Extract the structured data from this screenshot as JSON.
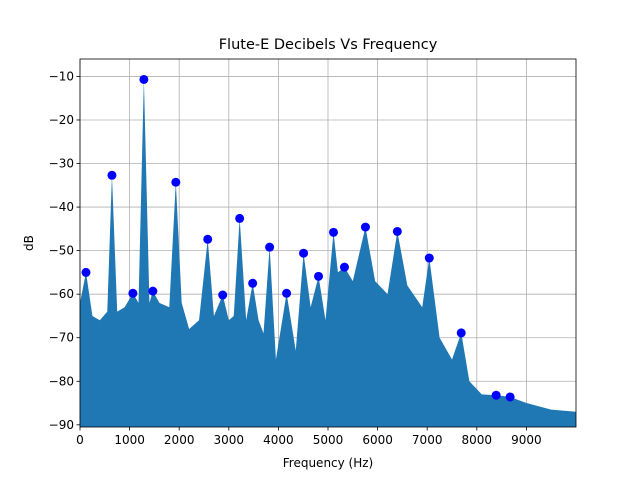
{
  "chart_data": {
    "type": "area",
    "title": "Flute-E Decibels Vs Frequency",
    "x_label": "Frequency (Hz)",
    "y_label": "dB",
    "x": [
      0,
      121,
      250,
      400,
      550,
      644,
      750,
      900,
      1066,
      1180,
      1288,
      1400,
      1469,
      1600,
      1800,
      1932,
      2050,
      2200,
      2400,
      2575,
      2700,
      2877,
      3000,
      3100,
      3219,
      3350,
      3481,
      3600,
      3700,
      3823,
      3950,
      4165,
      4350,
      4507,
      4650,
      4809,
      4950,
      5111,
      5200,
      5332,
      5500,
      5755,
      5950,
      6200,
      6398,
      6600,
      6900,
      7042,
      7250,
      7500,
      7686,
      7850,
      8100,
      8390,
      8672,
      9000,
      9500,
      10000
    ],
    "series": [
      {
        "color": "#1f77b4",
        "values": [
          -62,
          -55,
          -65,
          -66,
          -64,
          -32.7,
          -64,
          -63,
          -59.8,
          -62,
          -10.7,
          -62,
          -59.3,
          -62,
          -63,
          -34.3,
          -62,
          -68,
          -66,
          -47.4,
          -65,
          -60.2,
          -66,
          -65,
          -42.6,
          -66,
          -57.5,
          -66,
          -69,
          -49.2,
          -75,
          -59.8,
          -73,
          -50.6,
          -63,
          -55.9,
          -66,
          -45.8,
          -55,
          -53.8,
          -57,
          -44.6,
          -57,
          -60,
          -45.6,
          -58,
          -63,
          -51.7,
          -70,
          -75,
          -68.9,
          -80,
          -83,
          -83.2,
          -83.6,
          -85,
          -86.5,
          -87
        ]
      }
    ],
    "peaks": {
      "color": "#0000ff",
      "x": [
        121,
        644,
        1066,
        1288,
        1469,
        1932,
        2575,
        2877,
        3219,
        3481,
        3823,
        4165,
        4507,
        4809,
        5111,
        5332,
        5755,
        6398,
        7042,
        7686,
        8390,
        8672
      ],
      "values": [
        -55,
        -32.7,
        -59.8,
        -10.7,
        -59.3,
        -34.3,
        -47.4,
        -60.2,
        -42.6,
        -57.5,
        -49.2,
        -59.8,
        -50.6,
        -55.9,
        -45.8,
        -53.8,
        -44.6,
        -45.6,
        -51.7,
        -68.9,
        -83.2,
        -83.6
      ]
    },
    "xlim": [
      0,
      10000
    ],
    "ylim": [
      -90.5,
      -6
    ],
    "xticks": [
      0,
      1000,
      2000,
      3000,
      4000,
      5000,
      6000,
      7000,
      8000,
      9000
    ],
    "yticks": [
      {
        "value": -90,
        "label": "−90"
      },
      {
        "value": -80,
        "label": "−80"
      },
      {
        "value": -70,
        "label": "−70"
      },
      {
        "value": -60,
        "label": "−60"
      },
      {
        "value": -50,
        "label": "−50"
      },
      {
        "value": -40,
        "label": "−40"
      },
      {
        "value": -30,
        "label": "−30"
      },
      {
        "value": -20,
        "label": "−20"
      },
      {
        "value": -10,
        "label": "−10"
      }
    ],
    "grid": true
  }
}
